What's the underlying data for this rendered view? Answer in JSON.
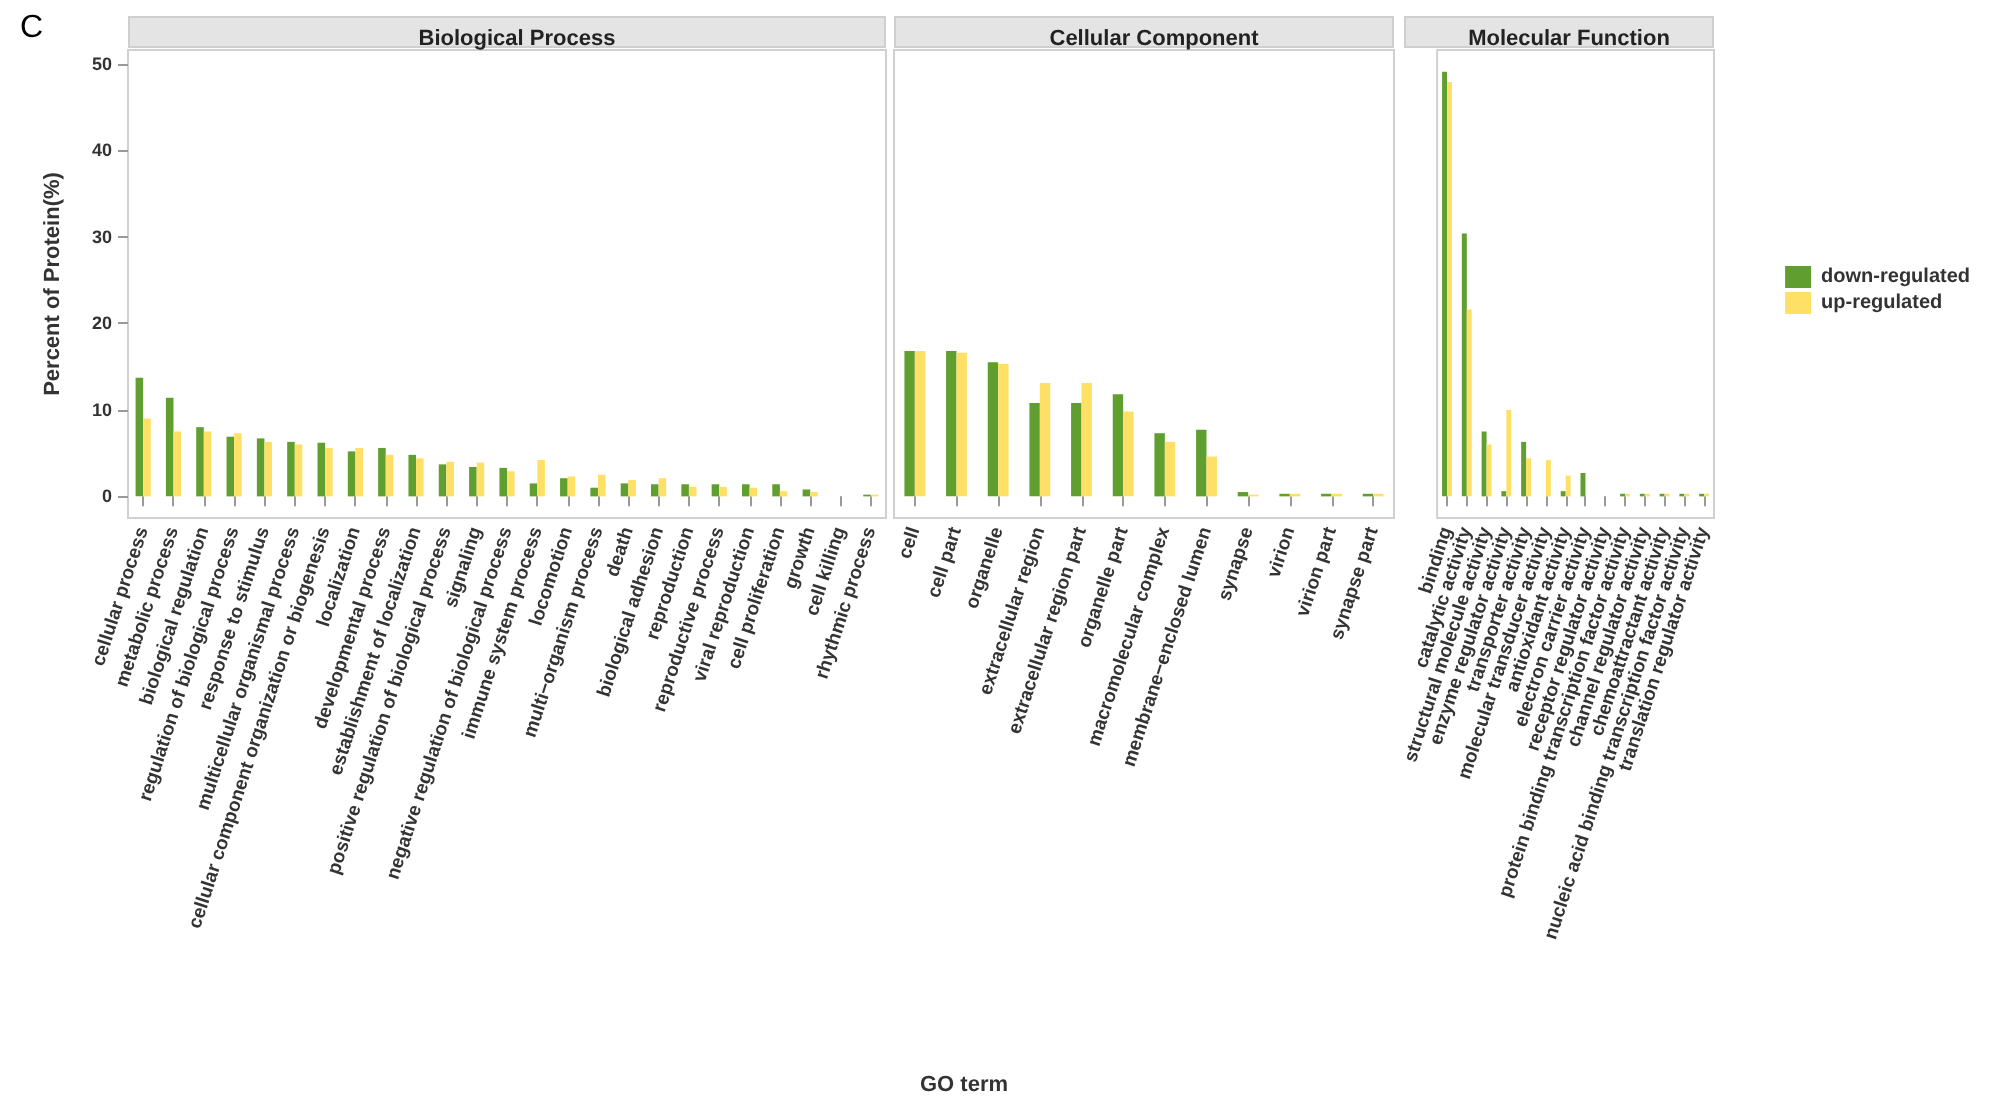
{
  "chart_data": [
    {
      "type": "bar",
      "title": "Biological Process",
      "ylabel": "Percent of Protein(%)",
      "annotations": [
        "C"
      ],
      "categories": [
        "cellular process",
        "metabolic process",
        "biological regulation",
        "regulation of biological process",
        "response to stimulus",
        "multicellular organismal process",
        "cellular component organization or biogenesis",
        "localization",
        "developmental process",
        "establishment of localization",
        "positive regulation of biological process",
        "signaling",
        "negative regulation of biological process",
        "immune system process",
        "locomotion",
        "multi−organism process",
        "death",
        "biological adhesion",
        "reproduction",
        "reproductive process",
        "viral reproduction",
        "cell proliferation",
        "growth",
        "cell killing",
        "rhythmic process"
      ],
      "series": [
        {
          "color": "#5f9e2f",
          "values": [
            13.7,
            11.4,
            8.0,
            6.9,
            6.7,
            6.3,
            6.2,
            5.2,
            5.6,
            4.8,
            3.7,
            3.4,
            3.3,
            1.5,
            2.1,
            1.0,
            1.5,
            1.4,
            1.4,
            1.4,
            1.4,
            1.4,
            0.8,
            0,
            0.2
          ]
        },
        {
          "color": "#ffe066",
          "values": [
            9.0,
            7.5,
            7.5,
            7.3,
            6.3,
            6.0,
            5.6,
            5.6,
            4.8,
            4.4,
            4.0,
            3.9,
            2.9,
            4.2,
            2.3,
            2.5,
            1.9,
            2.1,
            1.1,
            1.1,
            1.0,
            0.6,
            0.5,
            0,
            0.2
          ]
        }
      ],
      "ylim": [
        -2.5,
        51.6
      ],
      "yticks": [
        0,
        10,
        20,
        30,
        40,
        50
      ],
      "grid": false,
      "legend": false
    },
    {
      "type": "bar",
      "title": "Cellular Component",
      "xlabel": "GO term",
      "categories": [
        "cell",
        "cell part",
        "organelle",
        "extracellular region",
        "extracellular region part",
        "organelle part",
        "macromolecular complex",
        "membrane−enclosed lumen",
        "synapse",
        "virion",
        "virion part",
        "synapse part"
      ],
      "series": [
        {
          "color": "#5f9e2f",
          "values": [
            16.8,
            16.8,
            15.5,
            10.8,
            10.8,
            11.8,
            7.3,
            7.7,
            0.5,
            0.3,
            0.3,
            0.3
          ]
        },
        {
          "color": "#ffe066",
          "values": [
            16.8,
            16.6,
            15.3,
            13.1,
            13.1,
            9.8,
            6.3,
            4.6,
            0.2,
            0.3,
            0.3,
            0.3
          ]
        }
      ],
      "ylim": [
        -2.5,
        51.6
      ],
      "tick_labels": "x",
      "grid": false,
      "legend": false
    },
    {
      "type": "bar",
      "title": "Molecular Function",
      "categories": [
        "binding",
        "catalytic activity",
        "structural molecule activity",
        "enzyme regulator activity",
        "transporter activity",
        "molecular transducer activity",
        "antioxidant activity",
        "electron carrier activity",
        "receptor regulator activity",
        "protein binding transcription factor activity",
        "channel regulator activity",
        "chemoattractant activity",
        "nucleic acid binding transcription factor activity",
        "translation regulator activity"
      ],
      "series": [
        {
          "name": "down-regulated",
          "color": "#5f9e2f",
          "values": [
            49.1,
            30.4,
            7.5,
            0.6,
            6.3,
            0,
            0.6,
            2.7,
            null,
            0.3,
            0.3,
            0.3,
            0.3,
            0.3
          ]
        },
        {
          "name": "up-regulated",
          "color": "#ffe066",
          "values": [
            47.9,
            21.6,
            6.0,
            10.0,
            4.4,
            4.2,
            2.4,
            0,
            null,
            0.3,
            0.3,
            0.3,
            0.3,
            0.3
          ]
        }
      ],
      "ylim": [
        -2.5,
        51.6
      ],
      "tick_labels": "x",
      "grid": false,
      "legend": "right"
    }
  ]
}
